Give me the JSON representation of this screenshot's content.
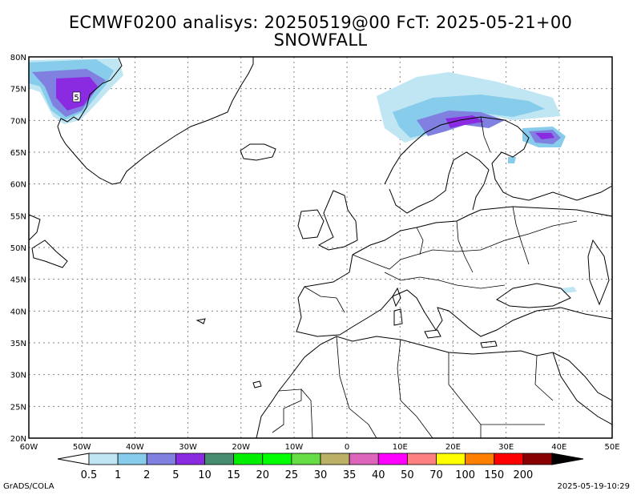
{
  "title_line1": "ECMWF0200 analisys: 20250519@00 FcT: 2025-05-21+00",
  "title_line2": "SNOWFALL",
  "map": {
    "lat_labels": [
      "80N",
      "75N",
      "70N",
      "65N",
      "60N",
      "55N",
      "50N",
      "45N",
      "40N",
      "35N",
      "30N",
      "25N",
      "20N"
    ],
    "lon_labels": [
      "60W",
      "50W",
      "40W",
      "30W",
      "20W",
      "10W",
      "0",
      "10E",
      "20E",
      "30E",
      "40E",
      "50E"
    ],
    "lat_range": [
      20,
      80
    ],
    "lon_range": [
      -60,
      50
    ],
    "grid": "dotted",
    "contour_label": "5"
  },
  "colorbar": {
    "labels": [
      "0.5",
      "1",
      "2",
      "5",
      "10",
      "15",
      "20",
      "25",
      "30",
      "35",
      "40",
      "50",
      "70",
      "100",
      "150",
      "200"
    ],
    "colors": [
      "#bfe6f2",
      "#87ccea",
      "#8080e0",
      "#8a2be2",
      "#468c6e",
      "#00ee00",
      "#00ff00",
      "#66dd44",
      "#bbb066",
      "#dd66bb",
      "#ff00ff",
      "#ff8080",
      "#ffff00",
      "#ff8000",
      "#ff0000",
      "#880000"
    ]
  },
  "footer_left": "GrADS/COLA",
  "footer_right": "2025-05-19-10:29"
}
